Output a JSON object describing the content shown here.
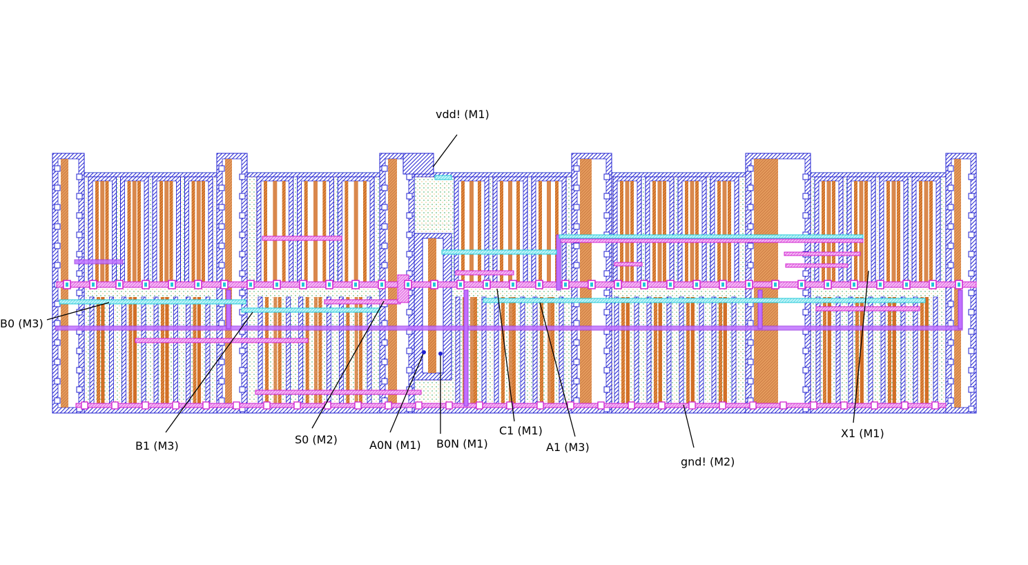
{
  "layers": {
    "metal1": "#1f1fd0",
    "metal2": "#e040e0",
    "metal3": "#9a3ae0",
    "via": "#20c8d8",
    "poly": "#d06a20",
    "active": "#12b080",
    "well": "#18c8a0",
    "diffusion_dots": "#2aa04a"
  },
  "pins": [
    {
      "id": "vdd",
      "text": "vdd! (M1)"
    },
    {
      "id": "b0",
      "text": "B0 (M3)"
    },
    {
      "id": "b1",
      "text": "B1 (M3)"
    },
    {
      "id": "s0",
      "text": "S0 (M2)"
    },
    {
      "id": "a0n",
      "text": "A0N (M1)"
    },
    {
      "id": "b0n",
      "text": "B0N (M1)"
    },
    {
      "id": "c1",
      "text": "C1 (M1)"
    },
    {
      "id": "a1",
      "text": "A1 (M3)"
    },
    {
      "id": "gnd",
      "text": "gnd! (M2)"
    },
    {
      "id": "x1",
      "text": "X1 (M1)"
    }
  ]
}
